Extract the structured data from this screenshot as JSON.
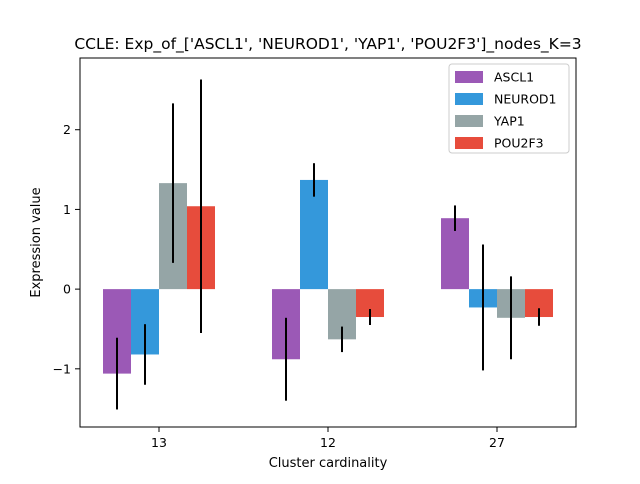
{
  "chart_data": {
    "type": "bar",
    "title": "CCLE: Exp_of_['ASCL1', 'NEUROD1', 'YAP1', 'POU2F3']_nodes_K=3",
    "xlabel": "Cluster cardinality",
    "ylabel": "Expression value",
    "categories": [
      "13",
      "12",
      "27"
    ],
    "ylim": [
      -1.73,
      2.9
    ],
    "yticks": [
      -1,
      0,
      1,
      2
    ],
    "ytick_labels": [
      "−1",
      "0",
      "1",
      "2"
    ],
    "legend_position": "top-right",
    "grid": false,
    "series": [
      {
        "name": "ASCL1",
        "color": "#9b59b6",
        "values": [
          -1.06,
          -0.88,
          0.89
        ],
        "errors": [
          0.45,
          0.52,
          0.16
        ]
      },
      {
        "name": "NEUROD1",
        "color": "#3498db",
        "values": [
          -0.82,
          1.37,
          -0.23
        ],
        "errors": [
          0.38,
          0.21,
          0.79
        ]
      },
      {
        "name": "YAP1",
        "color": "#95a5a6",
        "values": [
          1.33,
          -0.63,
          -0.36
        ],
        "errors": [
          1.0,
          0.16,
          0.52
        ]
      },
      {
        "name": "POU2F3",
        "color": "#e74c3c",
        "values": [
          1.04,
          -0.35,
          -0.35
        ],
        "errors": [
          1.59,
          0.1,
          0.11
        ]
      }
    ]
  }
}
